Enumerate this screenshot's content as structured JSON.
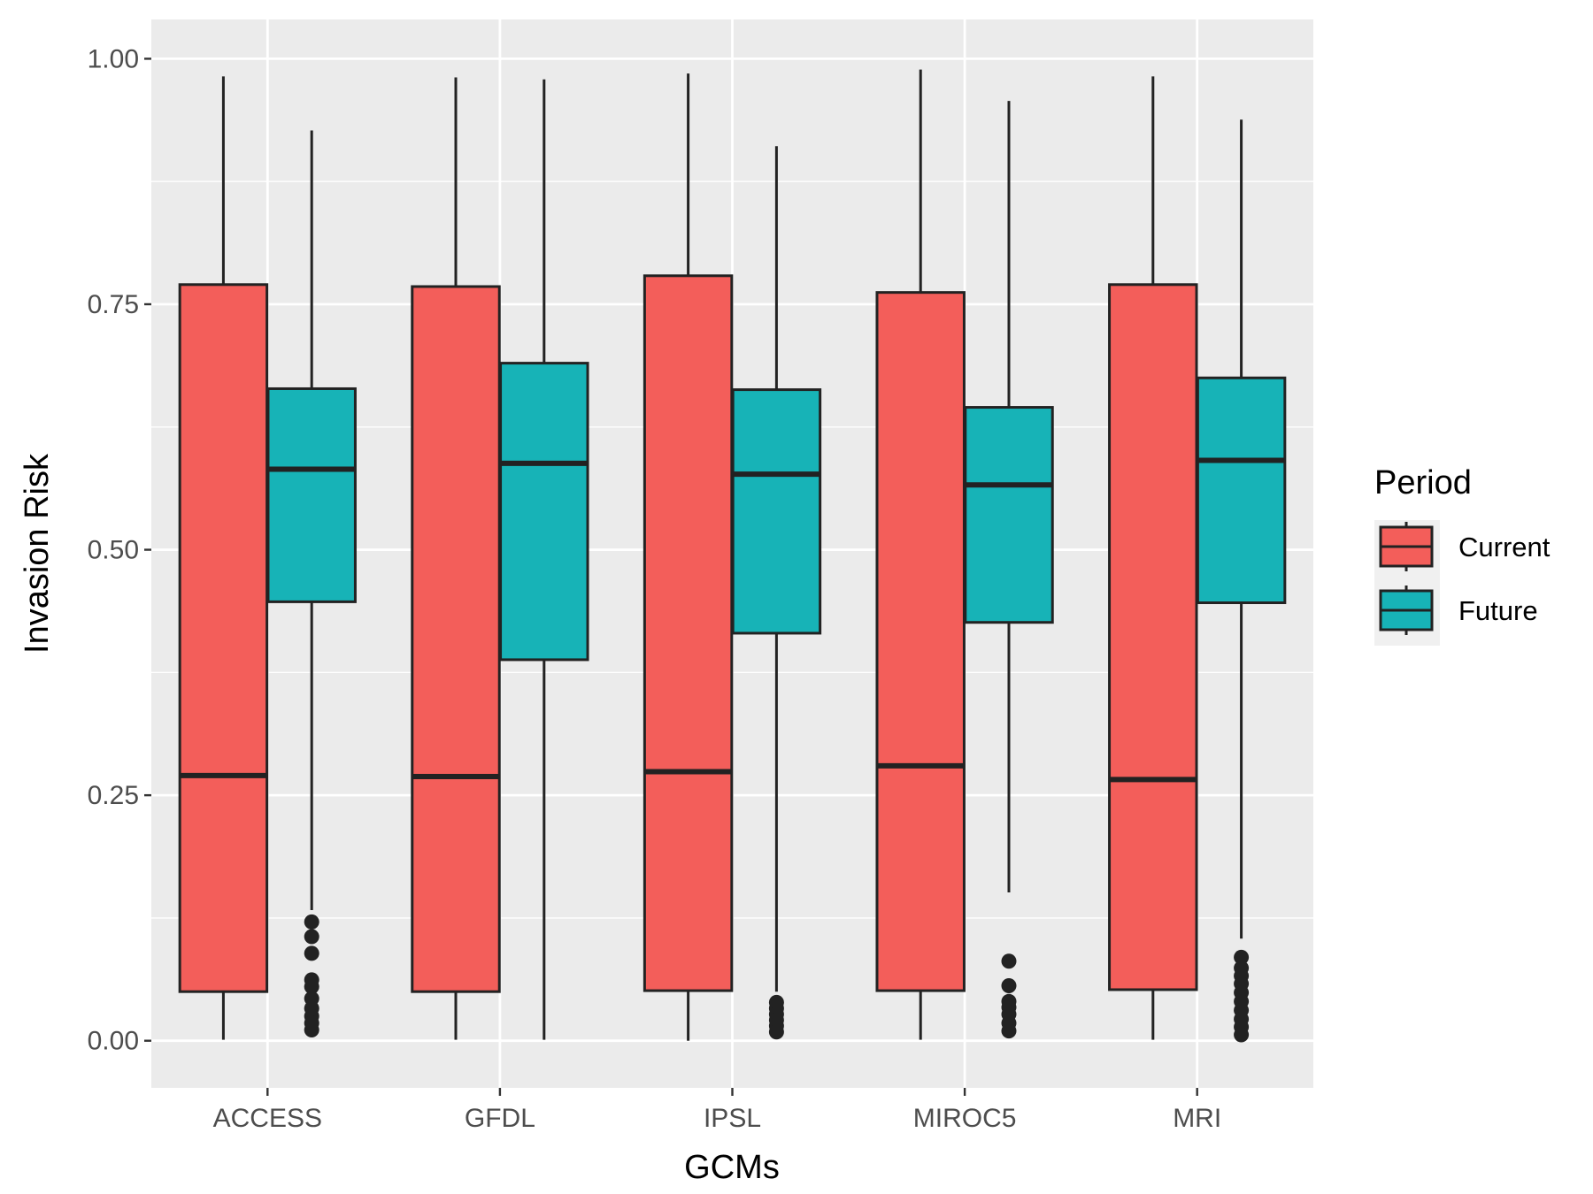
{
  "chart_data": {
    "type": "box",
    "xlabel": "GCMs",
    "ylabel": "Invasion Risk",
    "ylim": [
      -0.048,
      1.04
    ],
    "y_ticks": [
      {
        "value": 0.0,
        "label": "0.00"
      },
      {
        "value": 0.25,
        "label": "0.25"
      },
      {
        "value": 0.5,
        "label": "0.50"
      },
      {
        "value": 0.75,
        "label": "0.75"
      },
      {
        "value": 1.0,
        "label": "1.00"
      }
    ],
    "y_minor_ticks": [
      0.125,
      0.375,
      0.625,
      0.875
    ],
    "grid": true,
    "legend": {
      "title": "Period",
      "position": "right",
      "items": [
        {
          "name": "Current",
          "color": "#F35E5A"
        },
        {
          "name": "Future",
          "color": "#17B3B7"
        }
      ]
    },
    "categories": [
      "ACCESS",
      "GFDL",
      "IPSL",
      "MIROC5",
      "MRI"
    ],
    "series": [
      {
        "name": "Current",
        "color": "#F35E5A",
        "boxes": [
          {
            "category": "ACCESS",
            "min": 0.001,
            "q1": 0.05,
            "median": 0.27,
            "q3": 0.77,
            "max": 0.982,
            "outliers": []
          },
          {
            "category": "GFDL",
            "min": 0.001,
            "q1": 0.05,
            "median": 0.269,
            "q3": 0.768,
            "max": 0.981,
            "outliers": []
          },
          {
            "category": "IPSL",
            "min": 0.0,
            "q1": 0.051,
            "median": 0.274,
            "q3": 0.779,
            "max": 0.985,
            "outliers": []
          },
          {
            "category": "MIROC5",
            "min": 0.001,
            "q1": 0.051,
            "median": 0.28,
            "q3": 0.762,
            "max": 0.989,
            "outliers": []
          },
          {
            "category": "MRI",
            "min": 0.001,
            "q1": 0.052,
            "median": 0.266,
            "q3": 0.77,
            "max": 0.982,
            "outliers": []
          }
        ]
      },
      {
        "name": "Future",
        "color": "#17B3B7",
        "boxes": [
          {
            "category": "ACCESS",
            "min": 0.133,
            "q1": 0.447,
            "median": 0.582,
            "q3": 0.664,
            "max": 0.927,
            "outliers": [
              0.121,
              0.106,
              0.089,
              0.062,
              0.055,
              0.043,
              0.033,
              0.025,
              0.018,
              0.011
            ]
          },
          {
            "category": "GFDL",
            "min": 0.001,
            "q1": 0.388,
            "median": 0.588,
            "q3": 0.69,
            "max": 0.979,
            "outliers": []
          },
          {
            "category": "IPSL",
            "min": 0.05,
            "q1": 0.415,
            "median": 0.577,
            "q3": 0.663,
            "max": 0.911,
            "outliers": [
              0.039,
              0.033,
              0.027,
              0.021,
              0.015,
              0.009
            ]
          },
          {
            "category": "MIROC5",
            "min": 0.151,
            "q1": 0.426,
            "median": 0.566,
            "q3": 0.645,
            "max": 0.957,
            "outliers": [
              0.081,
              0.056,
              0.04,
              0.034,
              0.027,
              0.018,
              0.01
            ]
          },
          {
            "category": "MRI",
            "min": 0.104,
            "q1": 0.446,
            "median": 0.591,
            "q3": 0.675,
            "max": 0.938,
            "outliers": [
              0.085,
              0.074,
              0.066,
              0.058,
              0.049,
              0.04,
              0.031,
              0.022,
              0.014,
              0.006
            ]
          }
        ]
      }
    ]
  }
}
